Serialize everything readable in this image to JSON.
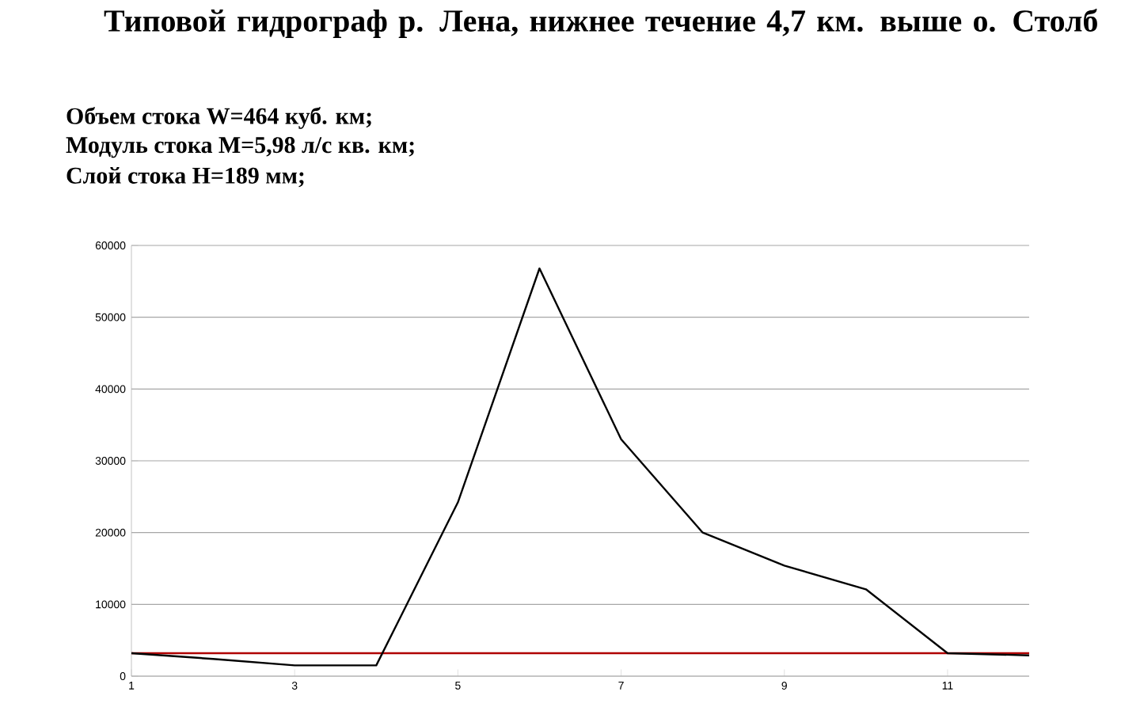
{
  "chart_data": {
    "type": "line",
    "title": "Типовой гидрограф р. Лена, нижнее течение 4,7 км. выше о. Столб",
    "annotations": [
      "Объем стока W=464 куб. км;",
      "Модуль стока M=5,98 л/с кв. км;",
      "Слой стока H=189 мм;"
    ],
    "x": [
      1,
      2,
      3,
      4,
      5,
      6,
      7,
      8,
      9,
      10,
      11,
      12
    ],
    "series": [
      {
        "color": "#000000",
        "values": [
          3200,
          2400,
          1500,
          1500,
          24200,
          56800,
          33000,
          20000,
          15400,
          12100,
          3200,
          2900
        ]
      }
    ],
    "xlim": [
      1,
      12
    ],
    "ylim": [
      0,
      60000
    ],
    "xticks": [
      1,
      3,
      5,
      7,
      9,
      11
    ],
    "yticks": [
      0,
      10000,
      20000,
      30000,
      40000,
      50000,
      60000
    ],
    "grid": "y",
    "marker": "none",
    "line_style": "solid",
    "ref_lines": [
      {
        "axis": "y",
        "value": 3200,
        "color": "#b00000"
      }
    ]
  }
}
